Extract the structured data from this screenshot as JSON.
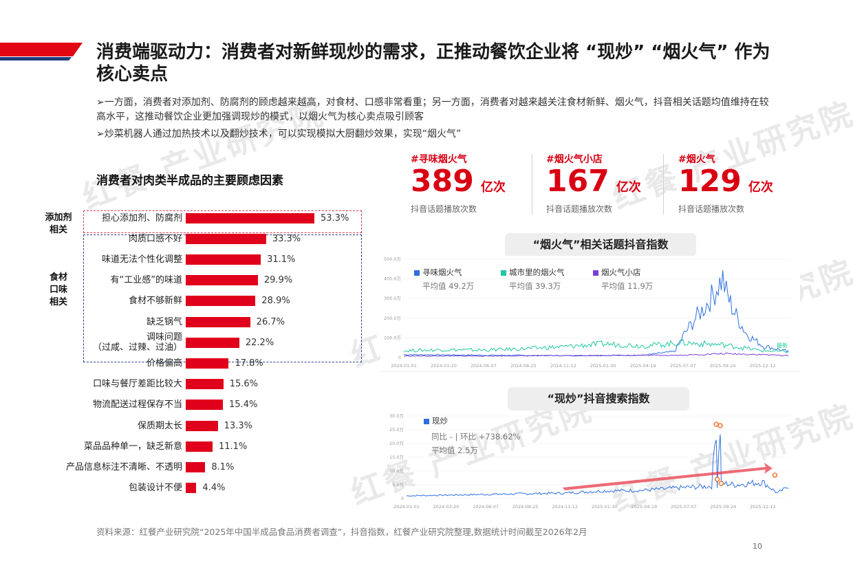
{
  "title": "消费端驱动力：消费者对新鲜现炒的需求，正推动餐饮企业将 “现炒” “烟火气” 作为核心卖点",
  "bullets": [
    "➢一方面，消费者对添加剂、防腐剂的顾虑越来越高，对食材、口感非常看重；另一方面，消费者对越来越关注食材新鲜、烟火气，抖音相关话题均值维持在较高水平，这推动餐饮企业更加强调现炒的模式，以烟火气为核心卖点吸引顾客",
    "➢炒菜机器人通过加热技术以及翻炒技术，可以实现模拟大厨翻炒效果，实现“烟火气”"
  ],
  "watermark": "红餐 产业研究院",
  "stats": [
    {
      "tag": "#寻味烟火气",
      "number": "389",
      "unit": "亿次",
      "sub": "抖音话题播放次数"
    },
    {
      "tag": "#烟火气小店",
      "number": "167",
      "unit": "亿次",
      "sub": "抖音话题播放次数"
    },
    {
      "tag": "#烟火气",
      "number": "129",
      "unit": "亿次",
      "sub": "抖音话题播放次数"
    }
  ],
  "bar_chart": {
    "group_labels": {
      "additive": "添加剂\n相关",
      "taste": "食材\n口味\n相关"
    }
  },
  "trend_chart": {
    "legend": [
      {
        "name": "寻味烟火气",
        "avg": "平均值 49.2万",
        "color": "#2d6fe0"
      },
      {
        "name": "城市里的烟火气",
        "avg": "平均值 39.3万",
        "color": "#1fc8a0"
      },
      {
        "name": "烟火气小店",
        "avg": "平均值 11.9万",
        "color": "#7b3fd6"
      }
    ],
    "end_label": "最新"
  },
  "search_chart": {
    "legend": {
      "name": "现炒",
      "color": "#2d6fe0"
    },
    "yoy": "同比 - | 环比 +738.62%",
    "avg": "平均值 2.5万"
  },
  "chart_data": [
    {
      "type": "bar",
      "title": "消费者对肉类半成品的主要顾虑因素",
      "categories": [
        "担心添加剂、防腐剂",
        "肉质口感不好",
        "味道无法个性化调整",
        "有“工业感”的味道",
        "食材不够新鲜",
        "缺乏锅气",
        "调味问题\n（过咸、过辣、过油）",
        "价格偏高",
        "口味与餐厅差距比较大",
        "物流配送过程保存不当",
        "保质期太长",
        "菜品品种单一，缺乏新意",
        "产品信息标注不清晰、不透明",
        "包装设计不便"
      ],
      "values": [
        53.3,
        33.3,
        31.1,
        29.9,
        28.9,
        26.7,
        22.2,
        17.8,
        15.6,
        15.4,
        13.3,
        11.1,
        8.1,
        4.4
      ],
      "value_labels": [
        "53.3%",
        "33.3%",
        "31.1%",
        "29.9%",
        "28.9%",
        "26.7%",
        "22.2%",
        "17.8%",
        "15.6%",
        "15.4%",
        "13.3%",
        "11.1%",
        "8.1%",
        "4.4%"
      ],
      "unit": "%",
      "color": "#e0001b"
    },
    {
      "type": "line",
      "title": "“烟火气”相关话题抖音指数",
      "y_ticks": [
        "500.0万",
        "400.0万",
        "300.0万",
        "200.0万",
        "100.0万",
        "0"
      ],
      "ylim": [
        0,
        500
      ],
      "x_ticks": [
        "2024-01-01",
        "2024-03-20",
        "2024-06-07",
        "2024-08-25",
        "2024-11-12",
        "2025-01-30",
        "2025-04-19",
        "2025-07-07",
        "2025-09-24",
        "2025-12-12"
      ],
      "series": [
        {
          "name": "寻味烟火气",
          "x": [
            "2024-01-01",
            "2024-06-07",
            "2024-11-12",
            "2025-04-19",
            "2025-06-20",
            "2025-07-10",
            "2025-08-01",
            "2025-08-20",
            "2025-09-05",
            "2025-09-15",
            "2025-09-24",
            "2025-10-01",
            "2025-10-15",
            "2025-11-10",
            "2025-12-12",
            "2026-02-01"
          ],
          "values": [
            15,
            12,
            10,
            12,
            30,
            120,
            200,
            260,
            320,
            370,
            400,
            330,
            240,
            120,
            60,
            30
          ]
        },
        {
          "name": "城市里的烟火气",
          "x": [
            "2024-01-01",
            "2024-03-20",
            "2024-06-07",
            "2024-08-25",
            "2024-11-12",
            "2025-01-30",
            "2025-04-19",
            "2025-07-07",
            "2025-09-24",
            "2025-12-12",
            "2026-02-01"
          ],
          "values": [
            35,
            40,
            38,
            45,
            55,
            70,
            60,
            75,
            65,
            35,
            30
          ]
        },
        {
          "name": "烟火气小店",
          "x": [
            "2024-01-01",
            "2024-06-07",
            "2024-11-12",
            "2025-04-19",
            "2025-07-07",
            "2025-09-24",
            "2025-12-12",
            "2026-02-01"
          ],
          "values": [
            8,
            8,
            10,
            12,
            12,
            20,
            15,
            10
          ]
        }
      ]
    },
    {
      "type": "line",
      "title": "“现炒”抖音搜索指数",
      "y_ticks": [
        "30.0万",
        "25.0万",
        "20.0万",
        "15.0万",
        "10.0万",
        "5.0万",
        "0"
      ],
      "ylim": [
        0,
        30
      ],
      "x_ticks": [
        "2024-01-01",
        "2024-03-20",
        "2024-06-07",
        "2024-08-25",
        "2024-11-12",
        "2025-01-30",
        "2025-04-19",
        "2025-07-07",
        "2025-09-24",
        "2025-12-12"
      ],
      "series": [
        {
          "name": "现炒",
          "x": [
            "2024-01-01",
            "2024-06-07",
            "2024-11-12",
            "2025-01-30",
            "2025-04-19",
            "2025-07-07",
            "2025-09-01",
            "2025-09-10",
            "2025-09-12",
            "2025-09-18",
            "2025-09-20",
            "2025-09-24",
            "2025-10-20",
            "2025-12-12",
            "2026-01-10",
            "2026-01-25",
            "2026-02-01"
          ],
          "values": [
            1.0,
            1.5,
            2.0,
            2.8,
            3.0,
            4.0,
            4.5,
            27.0,
            4.5,
            26.5,
            5.0,
            5.5,
            5.0,
            6.0,
            2.0,
            3.5,
            4.5
          ]
        }
      ]
    }
  ],
  "source": "资料来源：红餐产业研究院“2025年中国半成品食品消费者调查”，抖音指数，红餐产业研究院整理,数据统计时间截至2026年2月",
  "page_number": "10"
}
